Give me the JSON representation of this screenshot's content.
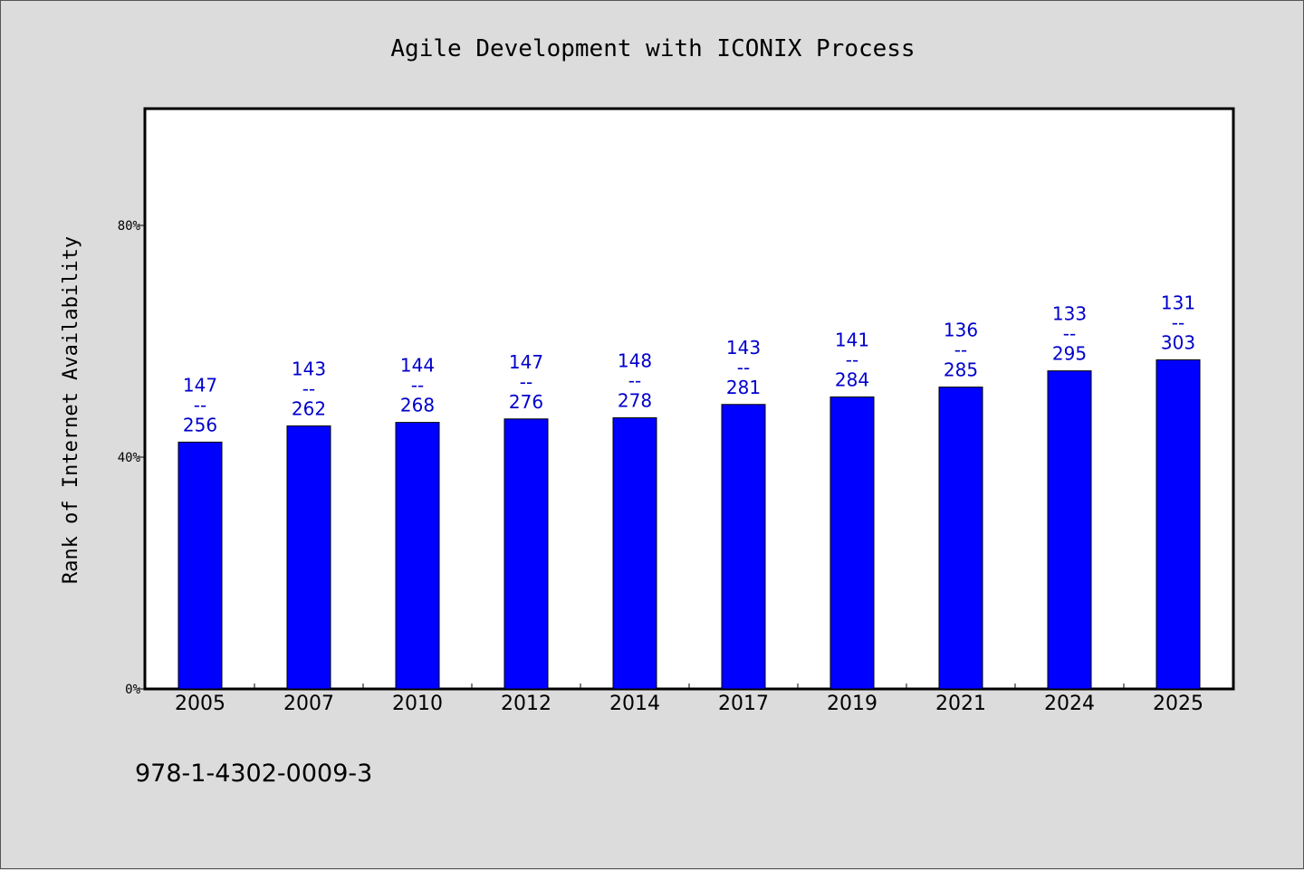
{
  "chart_data": {
    "type": "bar",
    "title": "Agile Development with ICONIX Process",
    "ylabel": "Rank of Internet Availability",
    "xlabel": "",
    "ylim": [
      0,
      100
    ],
    "yticks": [
      {
        "value": 0,
        "label": "0%"
      },
      {
        "value": 40,
        "label": "40%"
      },
      {
        "value": 80,
        "label": "80%"
      }
    ],
    "categories": [
      "2005",
      "2007",
      "2010",
      "2012",
      "2014",
      "2017",
      "2019",
      "2021",
      "2024",
      "2025"
    ],
    "values": [
      42.6,
      45.4,
      46.0,
      46.6,
      46.8,
      49.1,
      50.4,
      52.1,
      54.9,
      56.8
    ],
    "bar_labels": [
      {
        "rank": "147",
        "sep": "--",
        "total": "256"
      },
      {
        "rank": "143",
        "sep": "--",
        "total": "262"
      },
      {
        "rank": "144",
        "sep": "--",
        "total": "268"
      },
      {
        "rank": "147",
        "sep": "--",
        "total": "276"
      },
      {
        "rank": "148",
        "sep": "--",
        "total": "278"
      },
      {
        "rank": "143",
        "sep": "--",
        "total": "281"
      },
      {
        "rank": "141",
        "sep": "--",
        "total": "284"
      },
      {
        "rank": "136",
        "sep": "--",
        "total": "285"
      },
      {
        "rank": "133",
        "sep": "--",
        "total": "295"
      },
      {
        "rank": "131",
        "sep": "--",
        "total": "303"
      }
    ],
    "bar_color": "#0000ff",
    "label_color": "#0000cc",
    "grid": false,
    "legend": "none"
  },
  "footer": {
    "isbn": "978-1-4302-0009-3"
  }
}
